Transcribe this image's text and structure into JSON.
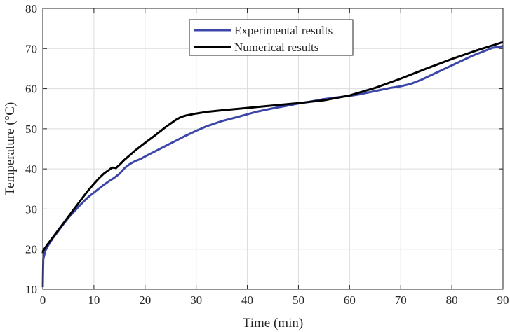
{
  "chart_data": {
    "type": "line",
    "xlabel": "Time (min)",
    "ylabel": "Temperature (°C)",
    "xlim": [
      0,
      90
    ],
    "ylim": [
      10,
      80
    ],
    "xticks": [
      0,
      10,
      20,
      30,
      40,
      50,
      60,
      70,
      80,
      90
    ],
    "yticks": [
      10,
      20,
      30,
      40,
      50,
      60,
      70,
      80
    ],
    "grid": true,
    "legend_position": "top-center",
    "series": [
      {
        "name": "Experimental results",
        "color": "#3b46a8",
        "x": [
          0,
          0.05,
          0.1,
          0.5,
          1,
          2,
          3,
          4,
          5,
          6,
          7,
          8,
          9,
          10,
          11,
          12,
          13,
          14,
          15,
          16,
          17,
          18,
          19,
          20,
          22,
          24,
          26,
          28,
          30,
          32,
          35,
          38,
          40,
          42,
          45,
          48,
          50,
          52,
          55,
          58,
          60,
          62,
          65,
          68,
          70,
          72,
          74,
          76,
          78,
          80,
          82,
          84,
          86,
          88,
          89,
          90
        ],
        "y": [
          10.5,
          14.5,
          17.5,
          19.6,
          20.8,
          22.8,
          24.5,
          26.2,
          27.8,
          29.2,
          30.6,
          31.9,
          33.1,
          34.1,
          35.1,
          36.1,
          37.0,
          37.8,
          38.8,
          40.2,
          41.2,
          41.9,
          42.4,
          43.1,
          44.4,
          45.7,
          47.0,
          48.3,
          49.5,
          50.6,
          51.9,
          52.9,
          53.6,
          54.3,
          55.1,
          55.8,
          56.3,
          56.7,
          57.4,
          57.9,
          58.2,
          58.6,
          59.4,
          60.2,
          60.6,
          61.2,
          62.2,
          63.4,
          64.6,
          65.8,
          67.0,
          68.2,
          69.2,
          70.2,
          70.4,
          70.6
        ]
      },
      {
        "name": "Numerical results",
        "color": "#000000",
        "x": [
          0,
          0.05,
          0.5,
          1,
          2,
          3,
          4,
          5,
          6,
          7,
          8,
          9,
          10,
          11,
          12,
          13,
          13.5,
          14,
          14.3,
          15,
          16,
          18,
          20,
          22,
          24,
          26,
          27,
          28,
          30,
          32,
          35,
          40,
          45,
          50,
          55,
          60,
          65,
          70,
          75,
          80,
          85,
          90
        ],
        "y": [
          19.0,
          19.6,
          20.4,
          21.3,
          23.0,
          24.7,
          26.4,
          28.1,
          29.8,
          31.5,
          33.2,
          34.8,
          36.3,
          37.7,
          38.9,
          39.8,
          40.3,
          40.3,
          40.2,
          41.0,
          42.3,
          44.5,
          46.5,
          48.4,
          50.4,
          52.2,
          52.9,
          53.3,
          53.8,
          54.2,
          54.6,
          55.2,
          55.8,
          56.4,
          57.1,
          58.3,
          60.2,
          62.5,
          65.0,
          67.4,
          69.6,
          71.6
        ]
      }
    ]
  }
}
